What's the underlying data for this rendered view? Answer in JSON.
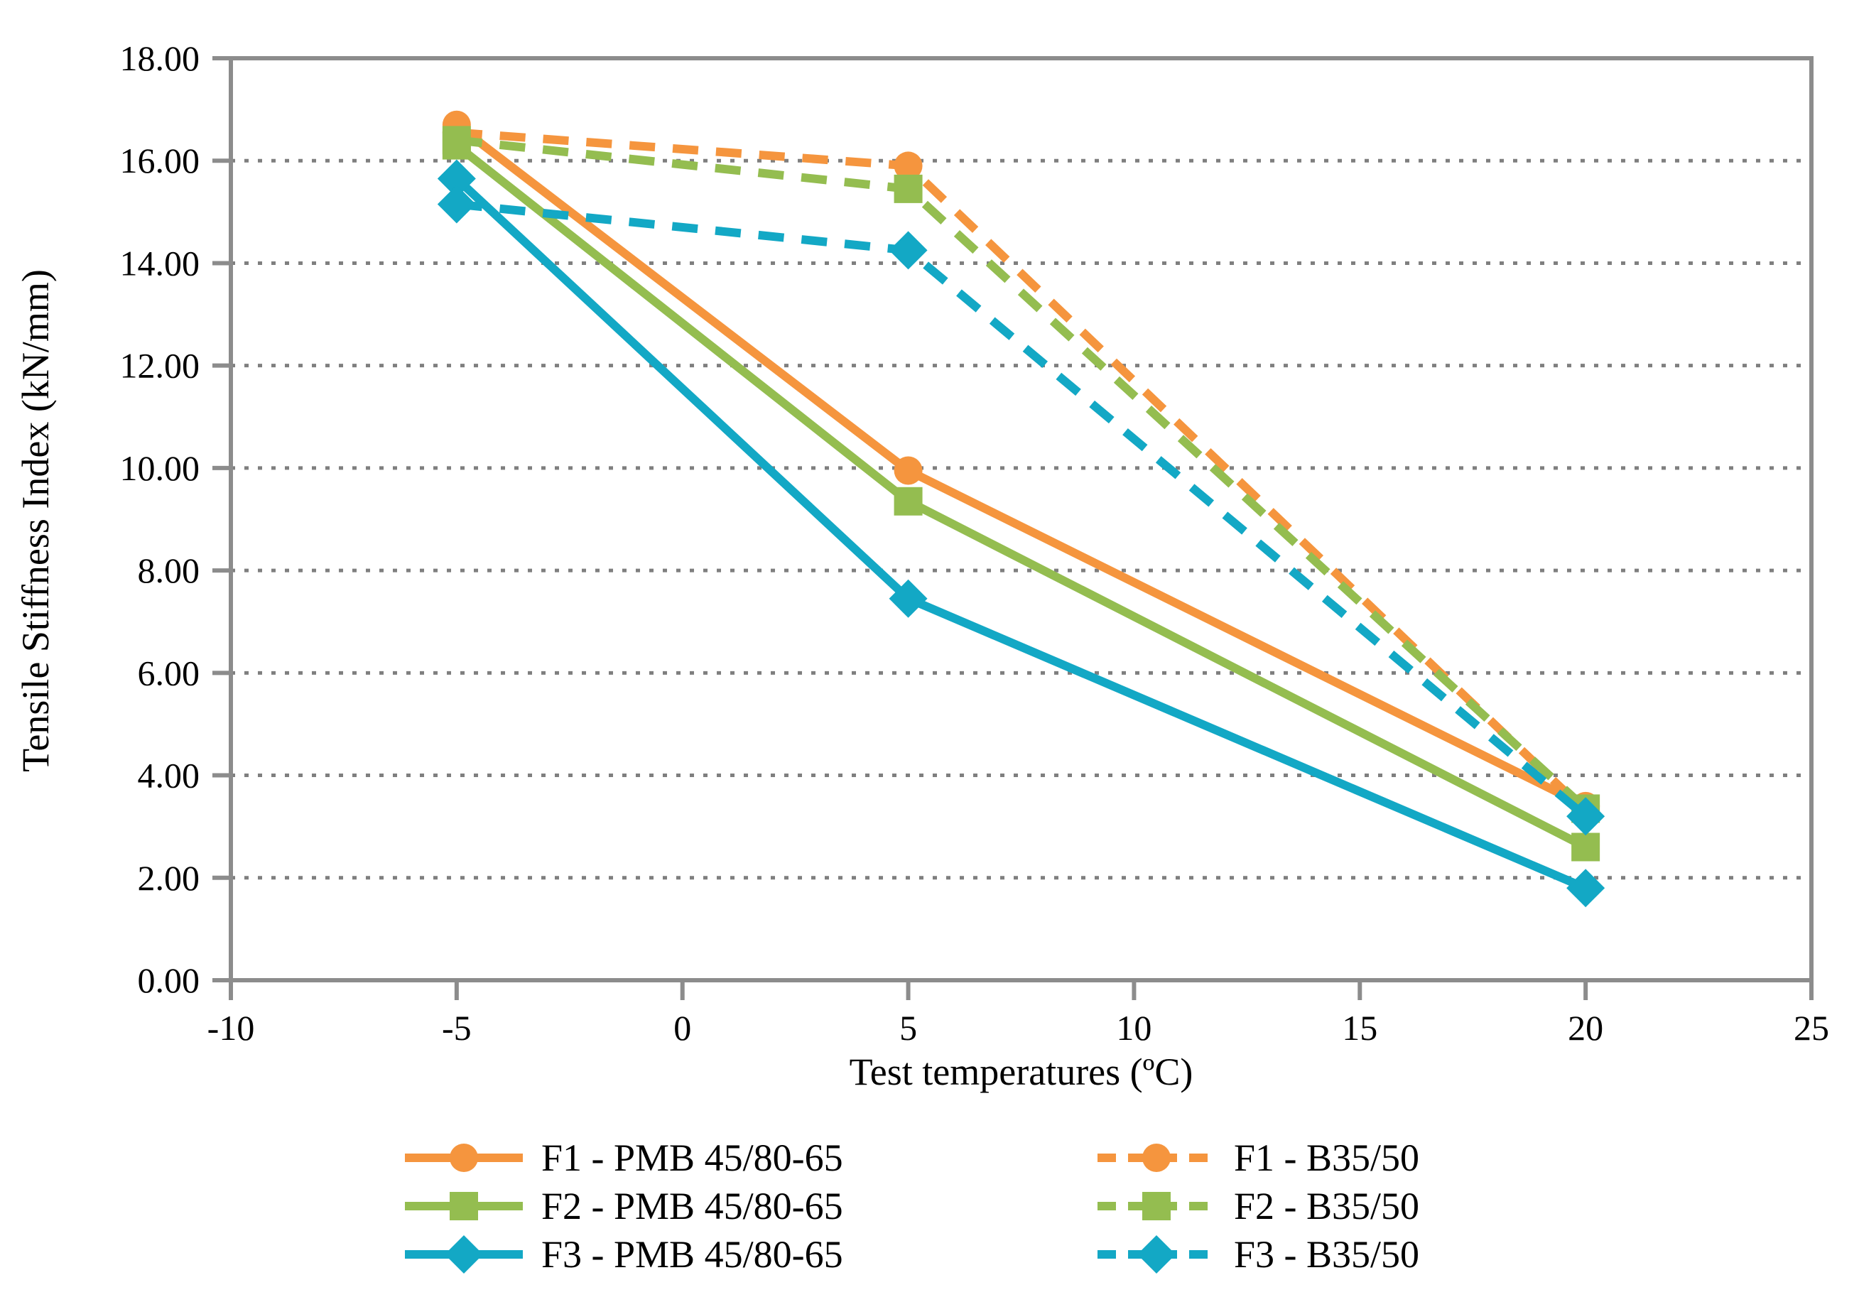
{
  "chart_data": {
    "type": "line",
    "title": "",
    "xlabel": "Test temperatures (ºC)",
    "ylabel": "Tensile Stiffness Index (kN/mm)",
    "xlim": [
      -10,
      25
    ],
    "ylim": [
      0,
      18
    ],
    "grid": "horizontal-dotted",
    "legend_position": "bottom",
    "x_ticks": [
      {
        "v": -10,
        "label": "-10"
      },
      {
        "v": -5,
        "label": "-5"
      },
      {
        "v": 0,
        "label": "0"
      },
      {
        "v": 5,
        "label": "5"
      },
      {
        "v": 10,
        "label": "10"
      },
      {
        "v": 15,
        "label": "15"
      },
      {
        "v": 20,
        "label": "20"
      },
      {
        "v": 25,
        "label": "25"
      }
    ],
    "y_ticks": [
      {
        "v": 0,
        "label": "0.00"
      },
      {
        "v": 2,
        "label": "2.00"
      },
      {
        "v": 4,
        "label": "4.00"
      },
      {
        "v": 6,
        "label": "6.00"
      },
      {
        "v": 8,
        "label": "8.00"
      },
      {
        "v": 10,
        "label": "10.00"
      },
      {
        "v": 12,
        "label": "12.00"
      },
      {
        "v": 14,
        "label": "14.00"
      },
      {
        "v": 16,
        "label": "16.00"
      },
      {
        "v": 18,
        "label": "18.00"
      }
    ],
    "x": [
      -5,
      5,
      20
    ],
    "series": [
      {
        "name": "F1 - PMB 45/80-65",
        "values": [
          16.7,
          9.95,
          3.4
        ],
        "color": "#F5953E",
        "dash": false,
        "marker": "circle"
      },
      {
        "name": "F2 - PMB 45/80-65",
        "values": [
          16.3,
          9.35,
          2.6
        ],
        "color": "#94BD50",
        "dash": false,
        "marker": "square"
      },
      {
        "name": "F3 - PMB 45/80-65",
        "values": [
          15.65,
          7.45,
          1.8
        ],
        "color": "#13A8C5",
        "dash": false,
        "marker": "diamond"
      },
      {
        "name": "F1 - B35/50",
        "values": [
          16.55,
          15.9,
          3.3
        ],
        "color": "#F5953E",
        "dash": true,
        "marker": "circle"
      },
      {
        "name": "F2 - B35/50",
        "values": [
          16.4,
          15.45,
          3.35
        ],
        "color": "#94BD50",
        "dash": true,
        "marker": "square"
      },
      {
        "name": "F3 - B35/50",
        "values": [
          15.15,
          14.25,
          3.2
        ],
        "color": "#13A8C5",
        "dash": true,
        "marker": "diamond"
      }
    ],
    "colors": {
      "grid": "#7F7F7F",
      "axis": "#8C8C8C",
      "text": "#000000"
    }
  },
  "legend": {
    "display_order": [
      0,
      3,
      1,
      4,
      2,
      5
    ]
  }
}
